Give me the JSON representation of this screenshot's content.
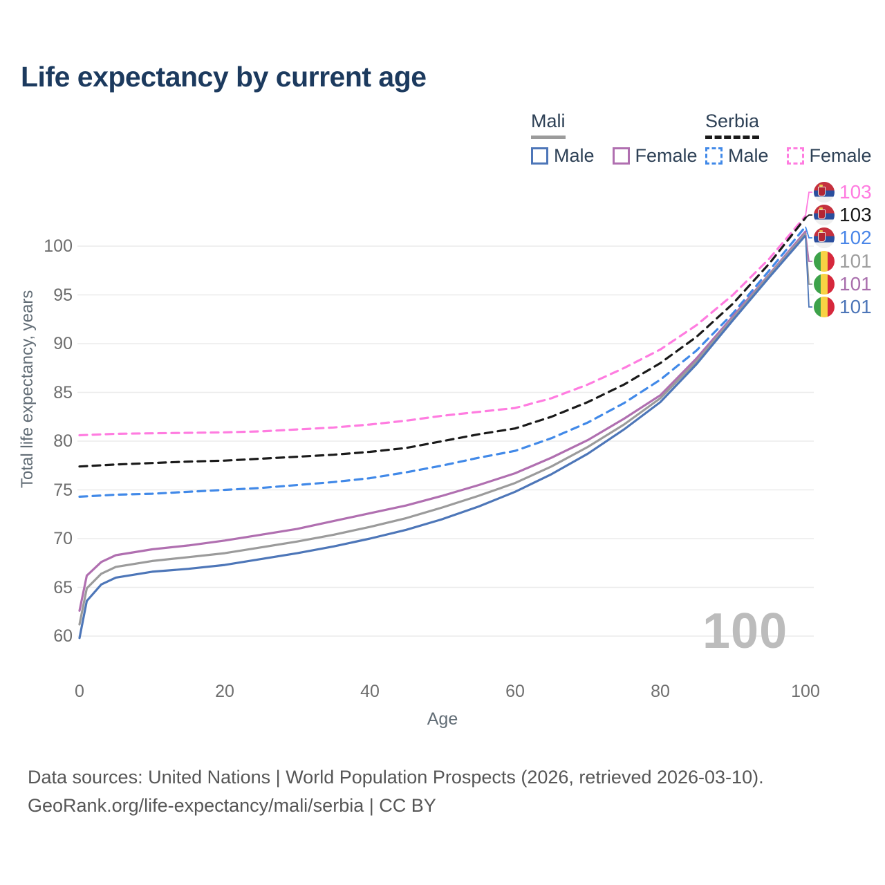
{
  "title": "Life expectancy by current age",
  "legend": {
    "groups": [
      {
        "name": "Mali",
        "line_style": "solid",
        "underline_color": "#9b9b9b",
        "items": [
          {
            "label": "Male",
            "color": "#4d76b8"
          },
          {
            "label": "Female",
            "color": "#b06fb0"
          }
        ]
      },
      {
        "name": "Serbia",
        "line_style": "dashed",
        "underline_color": "#1a1a1a",
        "items": [
          {
            "label": "Male",
            "color": "#4189e8"
          },
          {
            "label": "Female",
            "color": "#ff7ce0"
          }
        ]
      }
    ]
  },
  "chart_data": {
    "type": "line",
    "title": "Life expectancy by current age",
    "xlabel": "Age",
    "ylabel": "Total life expectancy, years",
    "xlim": [
      0,
      100
    ],
    "ylim": [
      59,
      103.5
    ],
    "x_ticks": [
      0,
      20,
      40,
      60,
      80,
      100
    ],
    "y_ticks": [
      60,
      65,
      70,
      75,
      80,
      85,
      90,
      95,
      100
    ],
    "grid": "horizontal",
    "legend_position": "top-right",
    "series": [
      {
        "name": "Serbia Female",
        "country": "serbia",
        "sex": "female",
        "color": "#ff7ce0",
        "dashed": true,
        "points": [
          [
            0,
            80.6
          ],
          [
            5,
            80.75
          ],
          [
            10,
            80.8
          ],
          [
            15,
            80.85
          ],
          [
            20,
            80.9
          ],
          [
            25,
            81.0
          ],
          [
            30,
            81.2
          ],
          [
            35,
            81.4
          ],
          [
            40,
            81.7
          ],
          [
            45,
            82.1
          ],
          [
            50,
            82.6
          ],
          [
            55,
            83.0
          ],
          [
            60,
            83.4
          ],
          [
            65,
            84.4
          ],
          [
            70,
            85.8
          ],
          [
            75,
            87.5
          ],
          [
            80,
            89.4
          ],
          [
            85,
            91.9
          ],
          [
            90,
            95.0
          ],
          [
            95,
            98.7
          ],
          [
            100,
            103.1
          ]
        ]
      },
      {
        "name": "Serbia All",
        "country": "serbia",
        "sex": "all",
        "color": "#1a1a1a",
        "dashed": true,
        "points": [
          [
            0,
            77.4
          ],
          [
            5,
            77.6
          ],
          [
            10,
            77.75
          ],
          [
            15,
            77.9
          ],
          [
            20,
            78.0
          ],
          [
            25,
            78.2
          ],
          [
            30,
            78.4
          ],
          [
            35,
            78.6
          ],
          [
            40,
            78.9
          ],
          [
            45,
            79.3
          ],
          [
            50,
            80.0
          ],
          [
            55,
            80.7
          ],
          [
            60,
            81.3
          ],
          [
            65,
            82.5
          ],
          [
            70,
            84.0
          ],
          [
            75,
            85.8
          ],
          [
            80,
            88.0
          ],
          [
            85,
            90.7
          ],
          [
            90,
            94.1
          ],
          [
            95,
            98.2
          ],
          [
            100,
            102.9
          ]
        ]
      },
      {
        "name": "Serbia Male",
        "country": "serbia",
        "sex": "male",
        "color": "#4189e8",
        "dashed": true,
        "points": [
          [
            0,
            74.3
          ],
          [
            5,
            74.5
          ],
          [
            10,
            74.6
          ],
          [
            15,
            74.8
          ],
          [
            20,
            75.0
          ],
          [
            25,
            75.2
          ],
          [
            30,
            75.5
          ],
          [
            35,
            75.8
          ],
          [
            40,
            76.2
          ],
          [
            45,
            76.8
          ],
          [
            50,
            77.5
          ],
          [
            55,
            78.3
          ],
          [
            60,
            79.0
          ],
          [
            65,
            80.3
          ],
          [
            70,
            81.9
          ],
          [
            75,
            83.9
          ],
          [
            80,
            86.3
          ],
          [
            85,
            89.3
          ],
          [
            90,
            93.1
          ],
          [
            95,
            97.5
          ],
          [
            100,
            102.0
          ]
        ]
      },
      {
        "name": "Mali Female",
        "country": "mali",
        "sex": "female",
        "color": "#b06fb0",
        "dashed": false,
        "points": [
          [
            0,
            62.6
          ],
          [
            1,
            66.2
          ],
          [
            3,
            67.6
          ],
          [
            5,
            68.3
          ],
          [
            10,
            68.9
          ],
          [
            15,
            69.3
          ],
          [
            20,
            69.8
          ],
          [
            25,
            70.4
          ],
          [
            30,
            71.0
          ],
          [
            35,
            71.8
          ],
          [
            40,
            72.6
          ],
          [
            45,
            73.4
          ],
          [
            50,
            74.4
          ],
          [
            55,
            75.5
          ],
          [
            60,
            76.7
          ],
          [
            65,
            78.3
          ],
          [
            70,
            80.1
          ],
          [
            75,
            82.3
          ],
          [
            80,
            84.7
          ],
          [
            85,
            88.5
          ],
          [
            90,
            92.8
          ],
          [
            95,
            97.1
          ],
          [
            100,
            101.5
          ]
        ]
      },
      {
        "name": "Mali All",
        "country": "mali",
        "sex": "all",
        "color": "#9b9b9b",
        "dashed": false,
        "points": [
          [
            0,
            61.2
          ],
          [
            1,
            64.9
          ],
          [
            3,
            66.4
          ],
          [
            5,
            67.1
          ],
          [
            10,
            67.7
          ],
          [
            15,
            68.1
          ],
          [
            20,
            68.5
          ],
          [
            25,
            69.1
          ],
          [
            30,
            69.7
          ],
          [
            35,
            70.4
          ],
          [
            40,
            71.2
          ],
          [
            45,
            72.1
          ],
          [
            50,
            73.2
          ],
          [
            55,
            74.4
          ],
          [
            60,
            75.7
          ],
          [
            65,
            77.4
          ],
          [
            70,
            79.4
          ],
          [
            75,
            81.7
          ],
          [
            80,
            84.4
          ],
          [
            85,
            88.2
          ],
          [
            90,
            92.6
          ],
          [
            95,
            97.0
          ],
          [
            100,
            101.3
          ]
        ]
      },
      {
        "name": "Mali Male",
        "country": "mali",
        "sex": "male",
        "color": "#4d76b8",
        "dashed": false,
        "points": [
          [
            0,
            59.8
          ],
          [
            1,
            63.6
          ],
          [
            3,
            65.3
          ],
          [
            5,
            66.0
          ],
          [
            10,
            66.6
          ],
          [
            15,
            66.9
          ],
          [
            20,
            67.3
          ],
          [
            25,
            67.9
          ],
          [
            30,
            68.5
          ],
          [
            35,
            69.2
          ],
          [
            40,
            70.0
          ],
          [
            45,
            70.9
          ],
          [
            50,
            72.0
          ],
          [
            55,
            73.3
          ],
          [
            60,
            74.8
          ],
          [
            65,
            76.6
          ],
          [
            70,
            78.7
          ],
          [
            75,
            81.2
          ],
          [
            80,
            84.0
          ],
          [
            85,
            87.9
          ],
          [
            90,
            92.4
          ],
          [
            95,
            96.8
          ],
          [
            100,
            101.1
          ]
        ]
      }
    ]
  },
  "end_labels": [
    {
      "value": "103",
      "flag": "serbia",
      "color": "#ff7ce0"
    },
    {
      "value": "103",
      "flag": "serbia",
      "color": "#1a1a1a"
    },
    {
      "value": "102",
      "flag": "serbia",
      "color": "#4a86e8"
    },
    {
      "value": "101",
      "flag": "mali",
      "color": "#9e9e9e"
    },
    {
      "value": "101",
      "flag": "mali",
      "color": "#a96fad"
    },
    {
      "value": "101",
      "flag": "mali",
      "color": "#4d76b8"
    }
  ],
  "watermark": "100",
  "footer": {
    "line1": "Data sources: United Nations | World Population Prospects (2026, retrieved 2026-03-10).",
    "line2": "GeoRank.org/life-expectancy/mali/serbia | CC BY"
  }
}
